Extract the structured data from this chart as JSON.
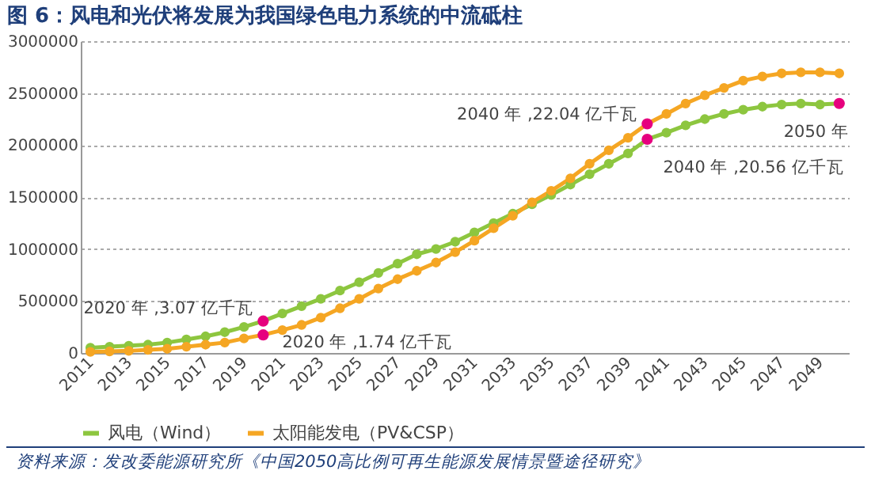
{
  "chart_data": {
    "type": "line",
    "title": "图 6：风电和光伏将发展为我国绿色电力系统的中流砥柱",
    "x": [
      2011,
      2012,
      2013,
      2014,
      2015,
      2016,
      2017,
      2018,
      2019,
      2020,
      2021,
      2022,
      2023,
      2024,
      2025,
      2026,
      2027,
      2028,
      2029,
      2030,
      2031,
      2032,
      2033,
      2034,
      2035,
      2036,
      2037,
      2038,
      2039,
      2040,
      2041,
      2042,
      2043,
      2044,
      2045,
      2046,
      2047,
      2048,
      2049,
      2050
    ],
    "xlim": [
      2010.5,
      2050.5
    ],
    "xticks": [
      2011,
      2013,
      2015,
      2017,
      2019,
      2021,
      2023,
      2025,
      2027,
      2029,
      2031,
      2033,
      2035,
      2037,
      2039,
      2041,
      2043,
      2045,
      2047,
      2049
    ],
    "ylim": [
      0,
      3000000
    ],
    "yticks": [
      0,
      500000,
      1000000,
      1500000,
      2000000,
      2500000,
      3000000
    ],
    "series": [
      {
        "name": "风电（Wind）",
        "color": "#8dc63f",
        "values": [
          50000,
          60000,
          70000,
          80000,
          100000,
          130000,
          160000,
          200000,
          250000,
          307000,
          380000,
          450000,
          520000,
          600000,
          680000,
          770000,
          860000,
          950000,
          1000000,
          1070000,
          1160000,
          1250000,
          1340000,
          1430000,
          1520000,
          1620000,
          1720000,
          1820000,
          1920000,
          2056000,
          2120000,
          2190000,
          2250000,
          2300000,
          2340000,
          2370000,
          2390000,
          2400000,
          2390000,
          2400000
        ]
      },
      {
        "name": "太阳能发电（PV&CSP）",
        "color": "#f5a623",
        "values": [
          10000,
          15000,
          20000,
          30000,
          40000,
          60000,
          80000,
          100000,
          140000,
          174000,
          220000,
          270000,
          340000,
          430000,
          520000,
          620000,
          710000,
          790000,
          870000,
          970000,
          1080000,
          1200000,
          1320000,
          1450000,
          1560000,
          1680000,
          1820000,
          1950000,
          2070000,
          2204000,
          2300000,
          2400000,
          2480000,
          2550000,
          2620000,
          2660000,
          2690000,
          2700000,
          2700000,
          2690000
        ]
      }
    ],
    "annotations": [
      {
        "text": "2020 年 ,3.07 亿千瓦",
        "x": 2020,
        "y": 307000
      },
      {
        "text": "2020 年 ,1.74 亿千瓦",
        "x": 2020,
        "y": 174000
      },
      {
        "text": "2040 年 ,22.04 亿千瓦",
        "x": 2040,
        "y": 2204000
      },
      {
        "text": "2040 年 ,20.56 亿千瓦",
        "x": 2040,
        "y": 2056000
      },
      {
        "text": "2050 年",
        "x": 2050,
        "y": 2400000
      },
      "资料来源：发改委能源研究所《中国2050高比例可再生能源发展情景暨途径研究》"
    ],
    "grid": "y",
    "legend": "bottom",
    "marker": "circle",
    "line_style": "solid"
  }
}
